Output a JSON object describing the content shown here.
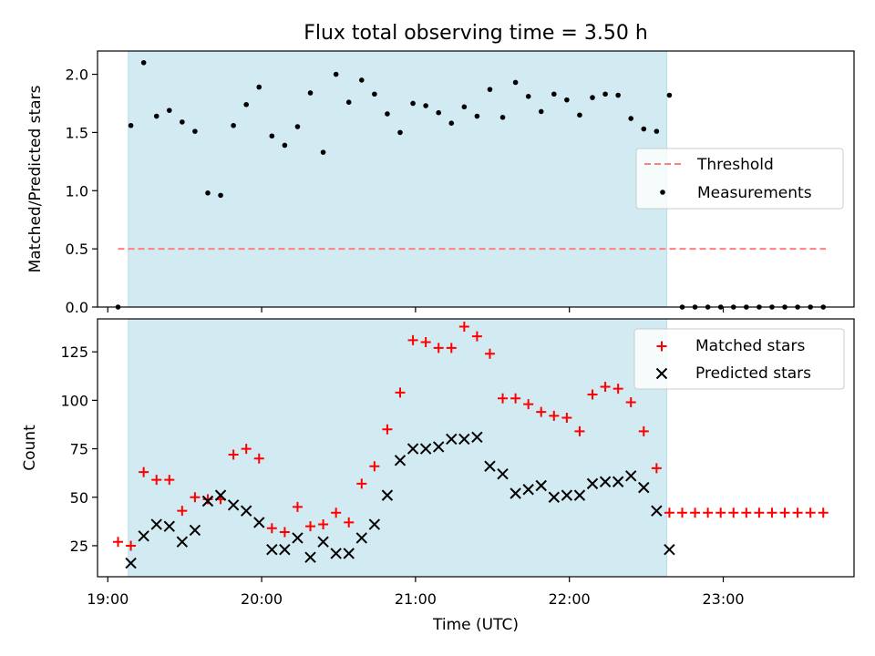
{
  "colors": {
    "shade": "#add8e6",
    "threshold": "#ff7f7f",
    "matched": "#ff0000",
    "predicted": "#000000",
    "measurement": "#000000"
  },
  "chart_data": [
    {
      "type": "scatter",
      "title": "Flux total observing time = 3.50 h",
      "xlabel": "",
      "ylabel": "Matched/Predicted stars",
      "ylim": [
        0,
        2.2
      ],
      "yticks": [
        0.0,
        0.5,
        1.0,
        1.5,
        2.0
      ],
      "ytick_labels": [
        "0.0",
        "0.5",
        "1.0",
        "1.5",
        "2.0"
      ],
      "shaded_interval": [
        "19:08",
        "22:38"
      ],
      "legend_position": "center-right",
      "threshold": {
        "name": "Threshold",
        "x_range": [
          "19:04",
          "23:40"
        ],
        "y": 0.5,
        "style": "dashed"
      },
      "measurements": {
        "name": "Measurements",
        "x": [
          "19:04",
          "19:09",
          "19:14",
          "19:19",
          "19:24",
          "19:29",
          "19:34",
          "19:39",
          "19:44",
          "19:49",
          "19:54",
          "19:59",
          "20:04",
          "20:09",
          "20:14",
          "20:19",
          "20:24",
          "20:29",
          "20:34",
          "20:39",
          "20:44",
          "20:49",
          "20:54",
          "20:59",
          "21:04",
          "21:09",
          "21:14",
          "21:19",
          "21:24",
          "21:29",
          "21:34",
          "21:39",
          "21:44",
          "21:49",
          "21:54",
          "21:59",
          "22:04",
          "22:09",
          "22:14",
          "22:19",
          "22:24",
          "22:29",
          "22:34",
          "22:39",
          "22:44",
          "22:49",
          "22:54",
          "22:59",
          "23:04",
          "23:09",
          "23:14",
          "23:19",
          "23:24",
          "23:29",
          "23:34",
          "23:39"
        ],
        "y": [
          0.0,
          1.56,
          2.1,
          1.64,
          1.69,
          1.59,
          1.51,
          0.98,
          0.96,
          1.56,
          1.74,
          1.89,
          1.47,
          1.39,
          1.55,
          1.84,
          1.33,
          2.0,
          1.76,
          1.95,
          1.83,
          1.66,
          1.5,
          1.75,
          1.73,
          1.67,
          1.58,
          1.72,
          1.64,
          1.87,
          1.63,
          1.93,
          1.81,
          1.68,
          1.83,
          1.78,
          1.65,
          1.8,
          1.83,
          1.82,
          1.62,
          1.53,
          1.51,
          1.82,
          0.0,
          0.0,
          0.0,
          0.0,
          0.0,
          0.0,
          0.0,
          0.0,
          0.0,
          0.0,
          0.0,
          0.0
        ]
      }
    },
    {
      "type": "scatter",
      "title": "",
      "xlabel": "Time (UTC)",
      "ylabel": "Count",
      "ylim": [
        9,
        142
      ],
      "yticks": [
        25,
        50,
        75,
        100,
        125
      ],
      "ytick_labels": [
        "25",
        "50",
        "75",
        "100",
        "125"
      ],
      "xlim": [
        "18:56",
        "23:51"
      ],
      "xticks": [
        "19:00",
        "20:00",
        "21:00",
        "22:00",
        "23:00"
      ],
      "xtick_labels": [
        "19:00",
        "20:00",
        "21:00",
        "22:00",
        "23:00"
      ],
      "shaded_interval": [
        "19:08",
        "22:38"
      ],
      "legend_position": "top-right",
      "series": [
        {
          "name": "Matched stars",
          "marker": "plus",
          "x": [
            "19:04",
            "19:09",
            "19:14",
            "19:19",
            "19:24",
            "19:29",
            "19:34",
            "19:39",
            "19:44",
            "19:49",
            "19:54",
            "19:59",
            "20:04",
            "20:09",
            "20:14",
            "20:19",
            "20:24",
            "20:29",
            "20:34",
            "20:39",
            "20:44",
            "20:49",
            "20:54",
            "20:59",
            "21:04",
            "21:09",
            "21:14",
            "21:19",
            "21:24",
            "21:29",
            "21:34",
            "21:39",
            "21:44",
            "21:49",
            "21:54",
            "21:59",
            "22:04",
            "22:09",
            "22:14",
            "22:19",
            "22:24",
            "22:29",
            "22:34",
            "22:39",
            "22:44",
            "22:49",
            "22:54",
            "22:59",
            "23:04",
            "23:09",
            "23:14",
            "23:19",
            "23:24",
            "23:29",
            "23:34",
            "23:39"
          ],
          "y": [
            27,
            25,
            63,
            59,
            59,
            43,
            50,
            49,
            49,
            72,
            75,
            70,
            34,
            32,
            45,
            35,
            36,
            42,
            37,
            57,
            66,
            85,
            104,
            131,
            130,
            127,
            127,
            138,
            133,
            124,
            101,
            101,
            98,
            94,
            92,
            91,
            84,
            103,
            107,
            106,
            99,
            84,
            65,
            42,
            42,
            42,
            42,
            42,
            42,
            42,
            42,
            42,
            42,
            42,
            42,
            42
          ]
        },
        {
          "name": "Predicted stars",
          "marker": "x",
          "x": [
            "19:09",
            "19:14",
            "19:19",
            "19:24",
            "19:29",
            "19:34",
            "19:39",
            "19:44",
            "19:49",
            "19:54",
            "19:59",
            "20:04",
            "20:09",
            "20:14",
            "20:19",
            "20:24",
            "20:29",
            "20:34",
            "20:39",
            "20:44",
            "20:49",
            "20:54",
            "20:59",
            "21:04",
            "21:09",
            "21:14",
            "21:19",
            "21:24",
            "21:29",
            "21:34",
            "21:39",
            "21:44",
            "21:49",
            "21:54",
            "21:59",
            "22:04",
            "22:09",
            "22:14",
            "22:19",
            "22:24",
            "22:29",
            "22:34",
            "22:39"
          ],
          "y": [
            16,
            30,
            36,
            35,
            27,
            33,
            48,
            51,
            46,
            43,
            37,
            23,
            23,
            29,
            19,
            27,
            21,
            21,
            29,
            36,
            51,
            69,
            75,
            75,
            76,
            80,
            80,
            81,
            66,
            62,
            52,
            54,
            56,
            50,
            51,
            51,
            57,
            58,
            58,
            61,
            55,
            43,
            23
          ]
        }
      ]
    }
  ]
}
